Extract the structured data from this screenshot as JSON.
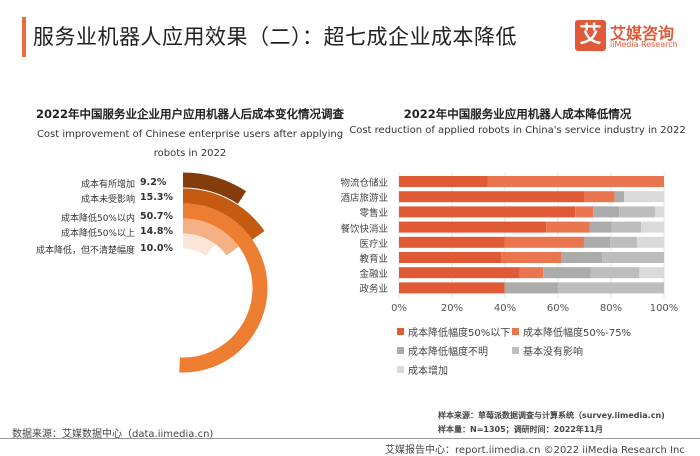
{
  "header": {
    "title": "服务业机器人应用效果（二）：超七成企业成本降低"
  },
  "logo": {
    "mark": "艾",
    "name_cn": "艾媒咨询",
    "name_en": "iiMedia Research",
    "color": "#e05a3a"
  },
  "chart_data": [
    {
      "type": "radial-bar",
      "title": "2022年中国服务业企业用户应用机器人后成本变化情况调查",
      "subtitle": "Cost improvement of Chinese enterprise users after applying robots in 2022",
      "categories": [
        "成本有所增加",
        "成本未受影响",
        "成本降低50%以内",
        "成本降低50%以上",
        "成本降低，但不清楚幅度"
      ],
      "values": [
        9.2,
        15.3,
        50.7,
        14.8,
        10.0
      ],
      "value_labels": [
        "9.2%",
        "15.3%",
        "50.7%",
        "14.8%",
        "10.0%"
      ],
      "colors": [
        "#843c0c",
        "#c55a11",
        "#ed7d31",
        "#f4b183",
        "#fbe5d6"
      ]
    },
    {
      "type": "stacked-bar-horizontal",
      "title": "2022年中国服务业应用机器人成本降低情况",
      "subtitle": "Cost reduction of applied robots in China's service industry in 2022",
      "categories": [
        "物流仓储业",
        "酒店旅游业",
        "零售业",
        "餐饮快消业",
        "医疗业",
        "教育业",
        "金融业",
        "政务业"
      ],
      "xlim": [
        0,
        100
      ],
      "xticks": [
        "0%",
        "20%",
        "40%",
        "60%",
        "80%",
        "100%"
      ],
      "grid": true,
      "legend_position": "bottom",
      "series": [
        {
          "name": "成本降低幅度50%以下",
          "color": "#e05a35",
          "values": [
            33.4,
            70.1,
            66.5,
            55.5,
            39.8,
            38.5,
            45.6,
            39.9
          ]
        },
        {
          "name": "成本降低幅度50%-75%",
          "color": "#ea7650",
          "values": [
            66.6,
            11.3,
            6.8,
            16.5,
            30.0,
            22.9,
            8.8,
            0
          ]
        },
        {
          "name": "成本降低幅度不明",
          "color": "#ababab",
          "values": [
            0,
            3.5,
            9.8,
            8.3,
            9.9,
            15.3,
            18.0,
            20.2
          ]
        },
        {
          "name": "基本没有影响",
          "color": "#bdbdbd",
          "values": [
            0,
            0,
            13.5,
            11.1,
            10.1,
            23.3,
            18.3,
            39.9
          ]
        },
        {
          "name": "成本增加",
          "color": "#dadada",
          "values": [
            0,
            15.1,
            3.4,
            8.6,
            10.2,
            0,
            9.3,
            0
          ]
        }
      ]
    }
  ],
  "notes": {
    "sample_source": "样本来源：草莓派数据调查与计算系统（survey.iimedia.cn)",
    "sample_size": "样本量：N=1305；调研时间：2022年11月",
    "data_source": "数据来源：艾媒数据中心（data.iimedia.cn)",
    "footer": "艾媒报告中心：report.iimedia.cn   ©2022  iiMedia Research  Inc"
  }
}
